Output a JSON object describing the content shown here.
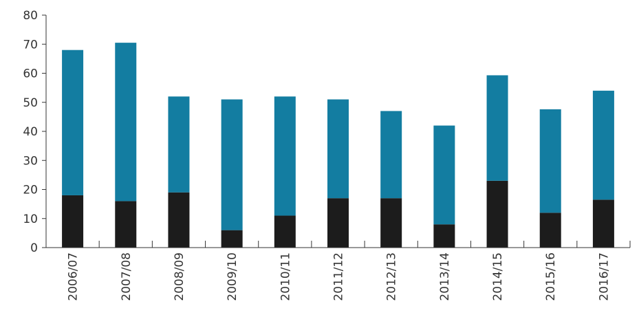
{
  "chart_data": {
    "type": "bar",
    "stacked": true,
    "categories": [
      "2006/07",
      "2007/08",
      "2008/09",
      "2009/10",
      "2010/11",
      "2011/12",
      "2012/13",
      "2013/14",
      "2014/15",
      "2015/16",
      "2016/17"
    ],
    "series": [
      {
        "color": "#1c1c1c",
        "values": [
          18,
          16,
          19,
          6,
          11,
          17,
          17,
          8,
          23,
          12,
          16.5
        ]
      },
      {
        "color": "#137da1",
        "values": [
          50,
          54.5,
          33,
          45,
          41,
          34,
          30,
          34,
          36.3,
          35.6,
          37.5
        ]
      }
    ],
    "ylim": [
      0,
      80
    ],
    "yticks": [
      "0",
      "10",
      "20",
      "30",
      "40",
      "50",
      "60",
      "70",
      "80"
    ],
    "grid": false,
    "legend": "none"
  }
}
